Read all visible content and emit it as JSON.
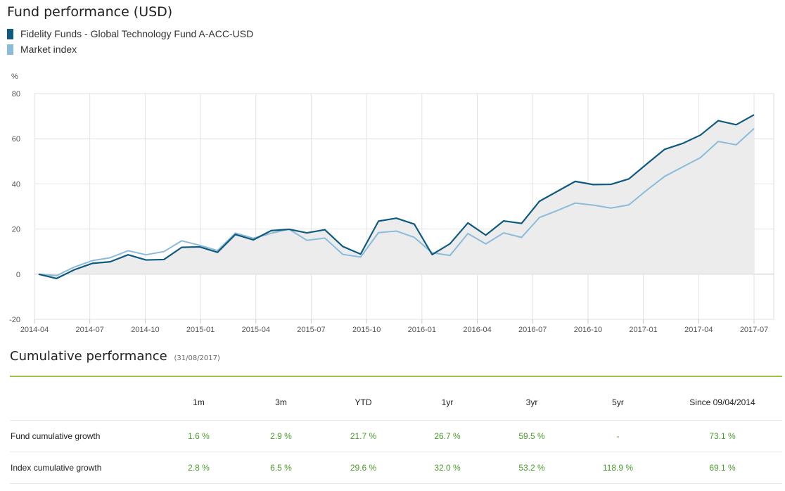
{
  "chart_data": {
    "type": "area",
    "title": "Fund performance (USD)",
    "ylabel": "%",
    "xlabel": "",
    "ylim": [
      -20,
      80
    ],
    "yticks": [
      -20,
      0,
      20,
      40,
      60,
      80
    ],
    "x_labels": [
      "2014-04",
      "2014-07",
      "2014-10",
      "2015-01",
      "2015-04",
      "2015-07",
      "2015-10",
      "2016-01",
      "2016-04",
      "2016-07",
      "2016-10",
      "2017-01",
      "2017-04",
      "2017-07"
    ],
    "grid": true,
    "legend_position": "top-left",
    "series": [
      {
        "name": "Fidelity Funds - Global Technology Fund A-ACC-USD",
        "color": "#0f5b80",
        "values": [
          0,
          -1.9,
          2,
          4.8,
          5.5,
          8.6,
          6.3,
          6.5,
          11.9,
          12.1,
          9.7,
          17.6,
          15.2,
          19.3,
          19.9,
          18.3,
          19.7,
          12.3,
          8.9,
          23.5,
          24.8,
          22.2,
          8.7,
          13.5,
          22.7,
          17.3,
          23.6,
          22.5,
          32.3,
          36.7,
          41.1,
          39.7,
          39.8,
          42.2,
          48.8,
          55.3,
          57.9,
          61.6,
          68,
          66.2,
          70.6
        ]
      },
      {
        "name": "Market index",
        "color": "#8abbdb",
        "values": [
          0,
          -0.6,
          3.2,
          6,
          7.3,
          10.4,
          8.6,
          10,
          14.8,
          12.8,
          10.5,
          18.2,
          15.9,
          18.1,
          19.9,
          15,
          16,
          8.8,
          7.6,
          18.4,
          19.1,
          16.3,
          9.5,
          8.3,
          18,
          13.4,
          18.3,
          16.3,
          25.1,
          28.2,
          31.5,
          30.6,
          29.3,
          30.7,
          37.2,
          43.3,
          47.5,
          51.6,
          58.8,
          57.3,
          64.5
        ]
      }
    ],
    "fill_color": "#ececec"
  },
  "cumulative": {
    "title": "Cumulative performance",
    "date": "(31/08/2017)",
    "accent_color": "#9bc34a",
    "value_color": "#4a9e2c",
    "headers": [
      "1m",
      "3m",
      "YTD",
      "1yr",
      "3yr",
      "5yr",
      "Since 09/04/2014"
    ],
    "rows": [
      {
        "label": "Fund cumulative growth",
        "values": [
          "1.6 %",
          "2.9 %",
          "21.7 %",
          "26.7 %",
          "59.5 %",
          "-",
          "73.1 %"
        ]
      },
      {
        "label": "Index cumulative growth",
        "values": [
          "2.8 %",
          "6.5 %",
          "29.6 %",
          "32.0 %",
          "53.2 %",
          "118.9 %",
          "69.1 %"
        ]
      }
    ]
  }
}
